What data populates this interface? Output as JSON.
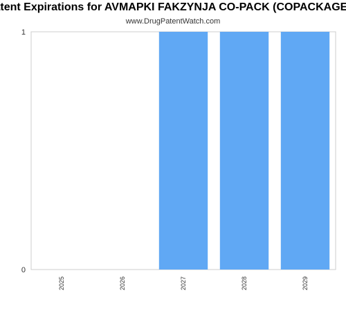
{
  "header": {
    "title": "Patent Expirations for AVMAPKI FAKZYNJA CO-PACK (COPACKAGED)",
    "subtitle": "www.DrugPatentWatch.com"
  },
  "chart_data": {
    "type": "bar",
    "title": "Patent Expirations for AVMAPKI FAKZYNJA CO-PACK (COPACKAGED)",
    "subtitle": "www.DrugPatentWatch.com",
    "categories": [
      "2025",
      "2026",
      "2027",
      "2028",
      "2029"
    ],
    "values": [
      0,
      0,
      1,
      1,
      1
    ],
    "yticks": [
      "0",
      "1"
    ],
    "ylim": [
      0,
      1
    ],
    "xlabel": "",
    "ylabel": "",
    "grid": false,
    "legend": "none",
    "colors": {
      "bar": "#60a8f4",
      "axis": "#cccccc"
    }
  }
}
